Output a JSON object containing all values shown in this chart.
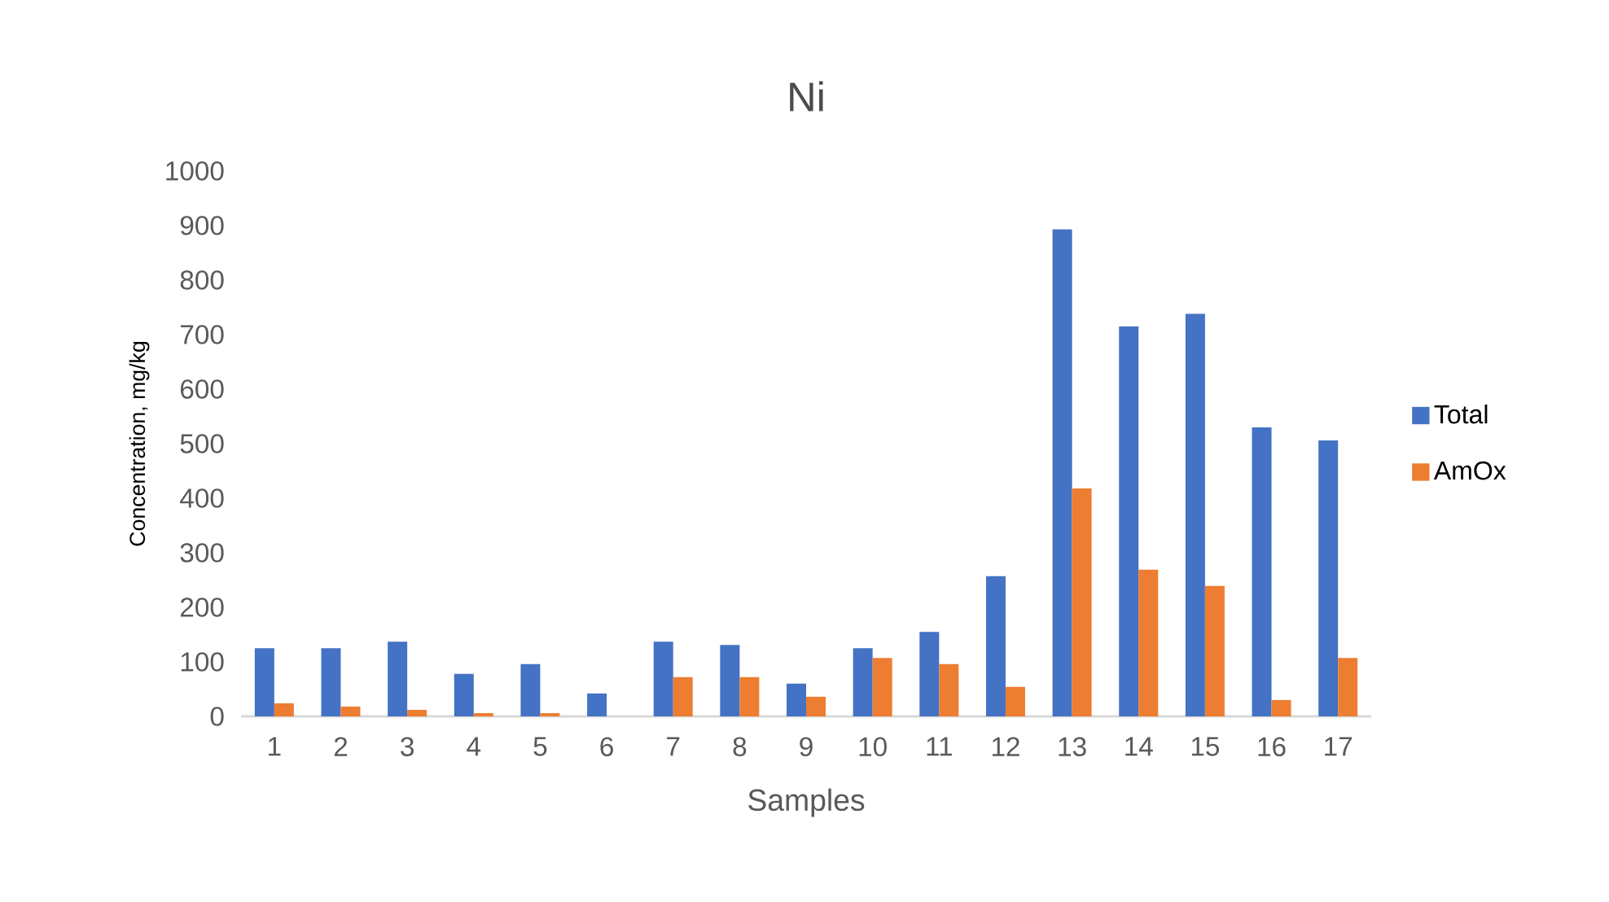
{
  "chart_data": {
    "type": "bar",
    "title": "Ni",
    "xlabel": "Samples",
    "ylabel": "Concentration, mg/kg",
    "categories": [
      "1",
      "2",
      "3",
      "4",
      "5",
      "6",
      "7",
      "8",
      "9",
      "10",
      "11",
      "12",
      "13",
      "14",
      "15",
      "16",
      "17"
    ],
    "series": [
      {
        "name": "Total",
        "color": "#4472c4",
        "values": [
          125,
          125,
          137,
          78,
          96,
          42,
          137,
          131,
          60,
          125,
          155,
          257,
          893,
          715,
          738,
          530,
          506
        ]
      },
      {
        "name": "AmOx",
        "color": "#ed7d31",
        "values": [
          24,
          18,
          12,
          6,
          6,
          0,
          72,
          72,
          36,
          107,
          96,
          54,
          418,
          269,
          239,
          30,
          107
        ]
      }
    ],
    "ylim": [
      0,
      1000
    ],
    "yticks": [
      0,
      100,
      200,
      300,
      400,
      500,
      600,
      700,
      800,
      900,
      1000
    ],
    "legend": "right"
  }
}
